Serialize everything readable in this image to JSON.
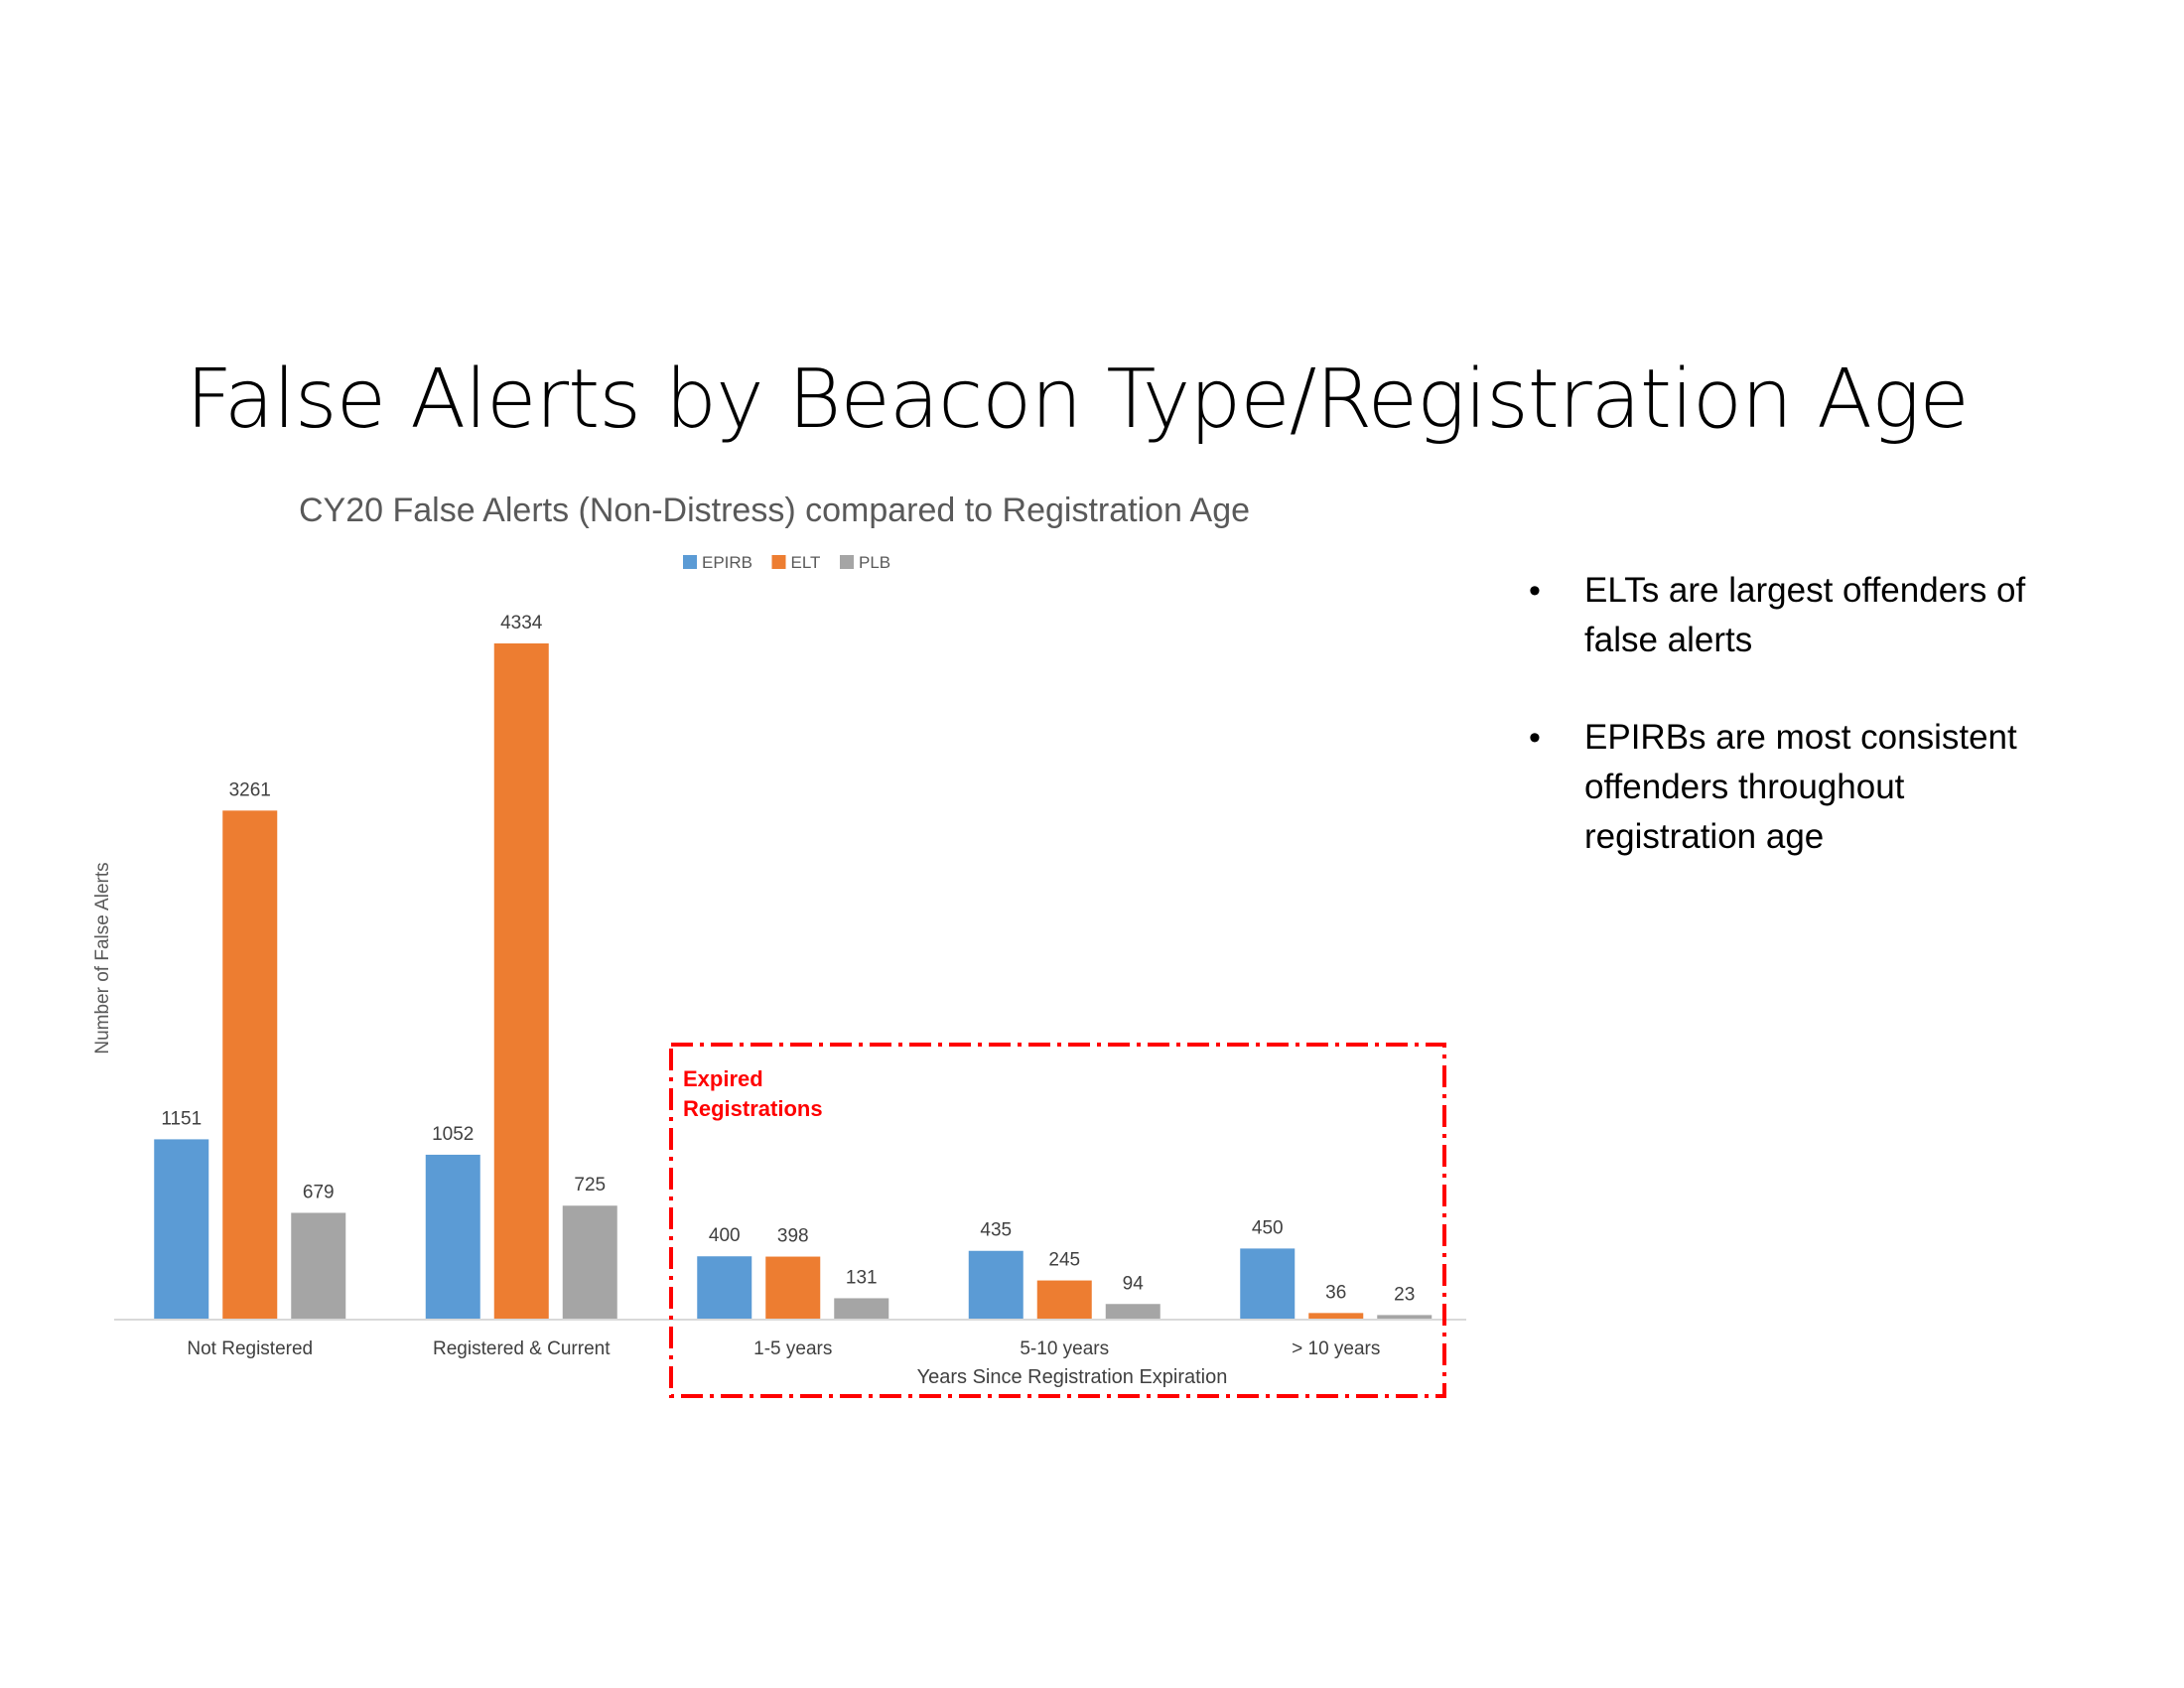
{
  "slide": {
    "title": "False Alerts by Beacon Type/Registration Age",
    "bullets": [
      "ELTs are largest offenders of false alerts",
      "EPIRBs are most consistent offenders throughout registration age"
    ]
  },
  "chart_data": {
    "type": "bar",
    "title": "CY20 False Alerts (Non-Distress) compared to Registration Age",
    "ylabel": "Number of False Alerts",
    "xlabel": "Years Since Registration Expiration",
    "categories": [
      "Not Registered",
      "Registered & Current",
      "1-5 years",
      "5-10 years",
      "> 10 years"
    ],
    "series": [
      {
        "name": "EPIRB",
        "color": "#5B9BD5",
        "values": [
          1151,
          1052,
          400,
          435,
          450
        ]
      },
      {
        "name": "ELT",
        "color": "#ED7D31",
        "values": [
          3261,
          4334,
          398,
          245,
          36
        ]
      },
      {
        "name": "PLB",
        "color": "#A5A5A5",
        "values": [
          679,
          725,
          131,
          94,
          23
        ]
      }
    ],
    "ylim": [
      0,
      4334
    ],
    "grid": false,
    "legend_position": "top",
    "data_labels": true,
    "annotation": {
      "text": "Expired Registrations",
      "lines": [
        "Expired",
        "Registrations"
      ],
      "color": "#FF0000",
      "covers_categories": [
        "1-5 years",
        "5-10 years",
        "> 10 years"
      ]
    }
  }
}
